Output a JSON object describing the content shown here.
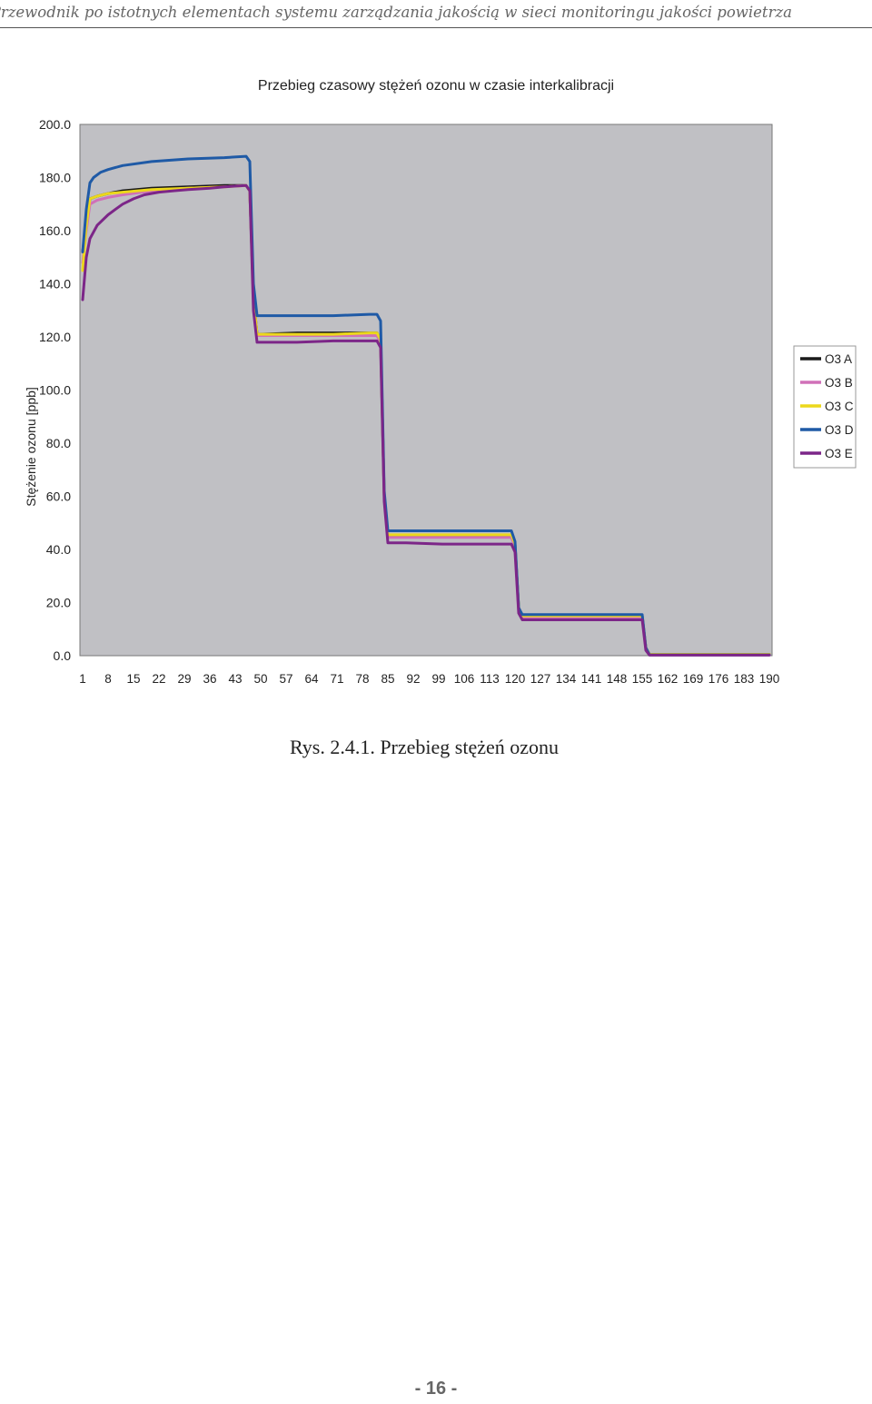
{
  "header": {
    "running_title": "Przewodnik po istotnych elementach systemu zarządzania jakością w sieci monitoringu jakości powietrza"
  },
  "caption": "Rys. 2.4.1. Przebieg stężeń ozonu",
  "page_number": "- 16 -",
  "chart_data": {
    "type": "line",
    "title": "Przebieg czasowy stężeń ozonu w czasie interkalibracji",
    "xlabel": "",
    "ylabel": "Stężenie ozonu [ppb]",
    "ylim": [
      0,
      200
    ],
    "xlim": [
      1,
      190
    ],
    "y_ticks": [
      "0.0",
      "20.0",
      "40.0",
      "60.0",
      "80.0",
      "100.0",
      "120.0",
      "140.0",
      "160.0",
      "180.0",
      "200.0"
    ],
    "x_ticks": [
      "1",
      "8",
      "15",
      "22",
      "29",
      "36",
      "43",
      "50",
      "57",
      "64",
      "71",
      "78",
      "85",
      "92",
      "99",
      "106",
      "113",
      "120",
      "127",
      "134",
      "141",
      "148",
      "155",
      "162",
      "169",
      "176",
      "183",
      "190"
    ],
    "grid": false,
    "legend": "right",
    "plot_background": "#c0c0c4",
    "series": [
      {
        "name": "O3 A",
        "color": "#1a1a1a",
        "x": [
          1,
          2,
          3,
          5,
          8,
          12,
          20,
          30,
          40,
          46,
          47,
          48,
          49,
          50,
          60,
          70,
          80,
          82,
          83,
          84,
          85,
          90,
          100,
          110,
          118,
          119,
          120,
          121,
          122,
          130,
          140,
          150,
          154,
          155,
          156,
          157,
          170,
          190
        ],
        "y": [
          152,
          163,
          172,
          173,
          174,
          175,
          176,
          176.5,
          177,
          177,
          175,
          135,
          121,
          121,
          121.5,
          121.5,
          121.5,
          121.5,
          119,
          60,
          45,
          45,
          45,
          45,
          45,
          45,
          42,
          18,
          15,
          15,
          15,
          15,
          15,
          15,
          3,
          0.5,
          0.5,
          0.5
        ]
      },
      {
        "name": "O3 B",
        "color": "#d070b8",
        "x": [
          1,
          2,
          3,
          5,
          8,
          12,
          20,
          30,
          40,
          46,
          47,
          48,
          49,
          50,
          60,
          70,
          80,
          82,
          83,
          84,
          85,
          90,
          100,
          110,
          118,
          119,
          120,
          121,
          122,
          130,
          140,
          150,
          154,
          155,
          156,
          157,
          170,
          190
        ],
        "y": [
          148,
          160,
          170,
          171.5,
          172.5,
          173.5,
          175,
          176,
          176.5,
          177,
          175,
          135,
          120.5,
          120.5,
          120.5,
          120.5,
          120.5,
          120.5,
          118,
          60,
          44.5,
          44.5,
          44.5,
          44.5,
          44.5,
          44.5,
          41,
          17,
          14.5,
          14.5,
          14.5,
          14.5,
          14.5,
          14.5,
          3,
          0.5,
          0.5,
          0.5
        ]
      },
      {
        "name": "O3 C",
        "color": "#ecd81c",
        "x": [
          1,
          2,
          3,
          5,
          8,
          12,
          20,
          30,
          40,
          46,
          47,
          48,
          49,
          50,
          60,
          70,
          80,
          82,
          83,
          84,
          85,
          90,
          100,
          110,
          118,
          119,
          120,
          121,
          122,
          130,
          140,
          150,
          154,
          155,
          156,
          157,
          170,
          190
        ],
        "y": [
          145,
          162,
          172,
          173,
          174,
          174.5,
          175.5,
          176,
          176.5,
          177,
          175,
          135,
          121,
          121,
          121,
          121,
          121.5,
          121.5,
          119,
          60,
          45.5,
          45.5,
          45.5,
          45.5,
          45.5,
          45.5,
          42,
          17.5,
          15,
          15,
          15,
          15,
          15,
          15,
          3,
          0.5,
          0.5,
          0.5
        ]
      },
      {
        "name": "O3 D",
        "color": "#1f5aa6",
        "x": [
          1,
          2,
          3,
          4,
          6,
          8,
          12,
          20,
          30,
          40,
          46,
          47,
          48,
          49,
          50,
          60,
          70,
          80,
          82,
          83,
          84,
          85,
          90,
          100,
          110,
          118,
          119,
          120,
          121,
          122,
          130,
          140,
          150,
          154,
          155,
          156,
          157,
          170,
          190
        ],
        "y": [
          152,
          168,
          178,
          180,
          182,
          183,
          184.5,
          186,
          187,
          187.5,
          188,
          186,
          140,
          128,
          128,
          128,
          128,
          128.5,
          128.5,
          126,
          62,
          47,
          47,
          47,
          47,
          47,
          47,
          43,
          18,
          15.5,
          15.5,
          15.5,
          15.5,
          15.5,
          15.5,
          3,
          0.3,
          0.3,
          0.3
        ]
      },
      {
        "name": "O3 E",
        "color": "#7c2688",
        "x": [
          1,
          2,
          3,
          5,
          8,
          10,
          12,
          15,
          18,
          22,
          26,
          30,
          36,
          40,
          46,
          47,
          48,
          49,
          50,
          60,
          70,
          80,
          82,
          83,
          84,
          85,
          90,
          100,
          110,
          118,
          119,
          120,
          121,
          122,
          130,
          140,
          150,
          154,
          155,
          156,
          157,
          170,
          190
        ],
        "y": [
          134,
          150,
          157,
          162,
          166,
          168,
          170,
          172,
          173.5,
          174.5,
          175,
          175.5,
          176,
          176.5,
          177,
          175,
          130,
          118,
          118,
          118,
          118.5,
          118.5,
          118.5,
          116,
          58,
          42.5,
          42.5,
          42,
          42,
          42,
          42,
          39,
          16,
          13.5,
          13.5,
          13.5,
          13.5,
          13.5,
          13.5,
          2,
          0.2,
          0.2,
          0.2
        ]
      }
    ]
  }
}
